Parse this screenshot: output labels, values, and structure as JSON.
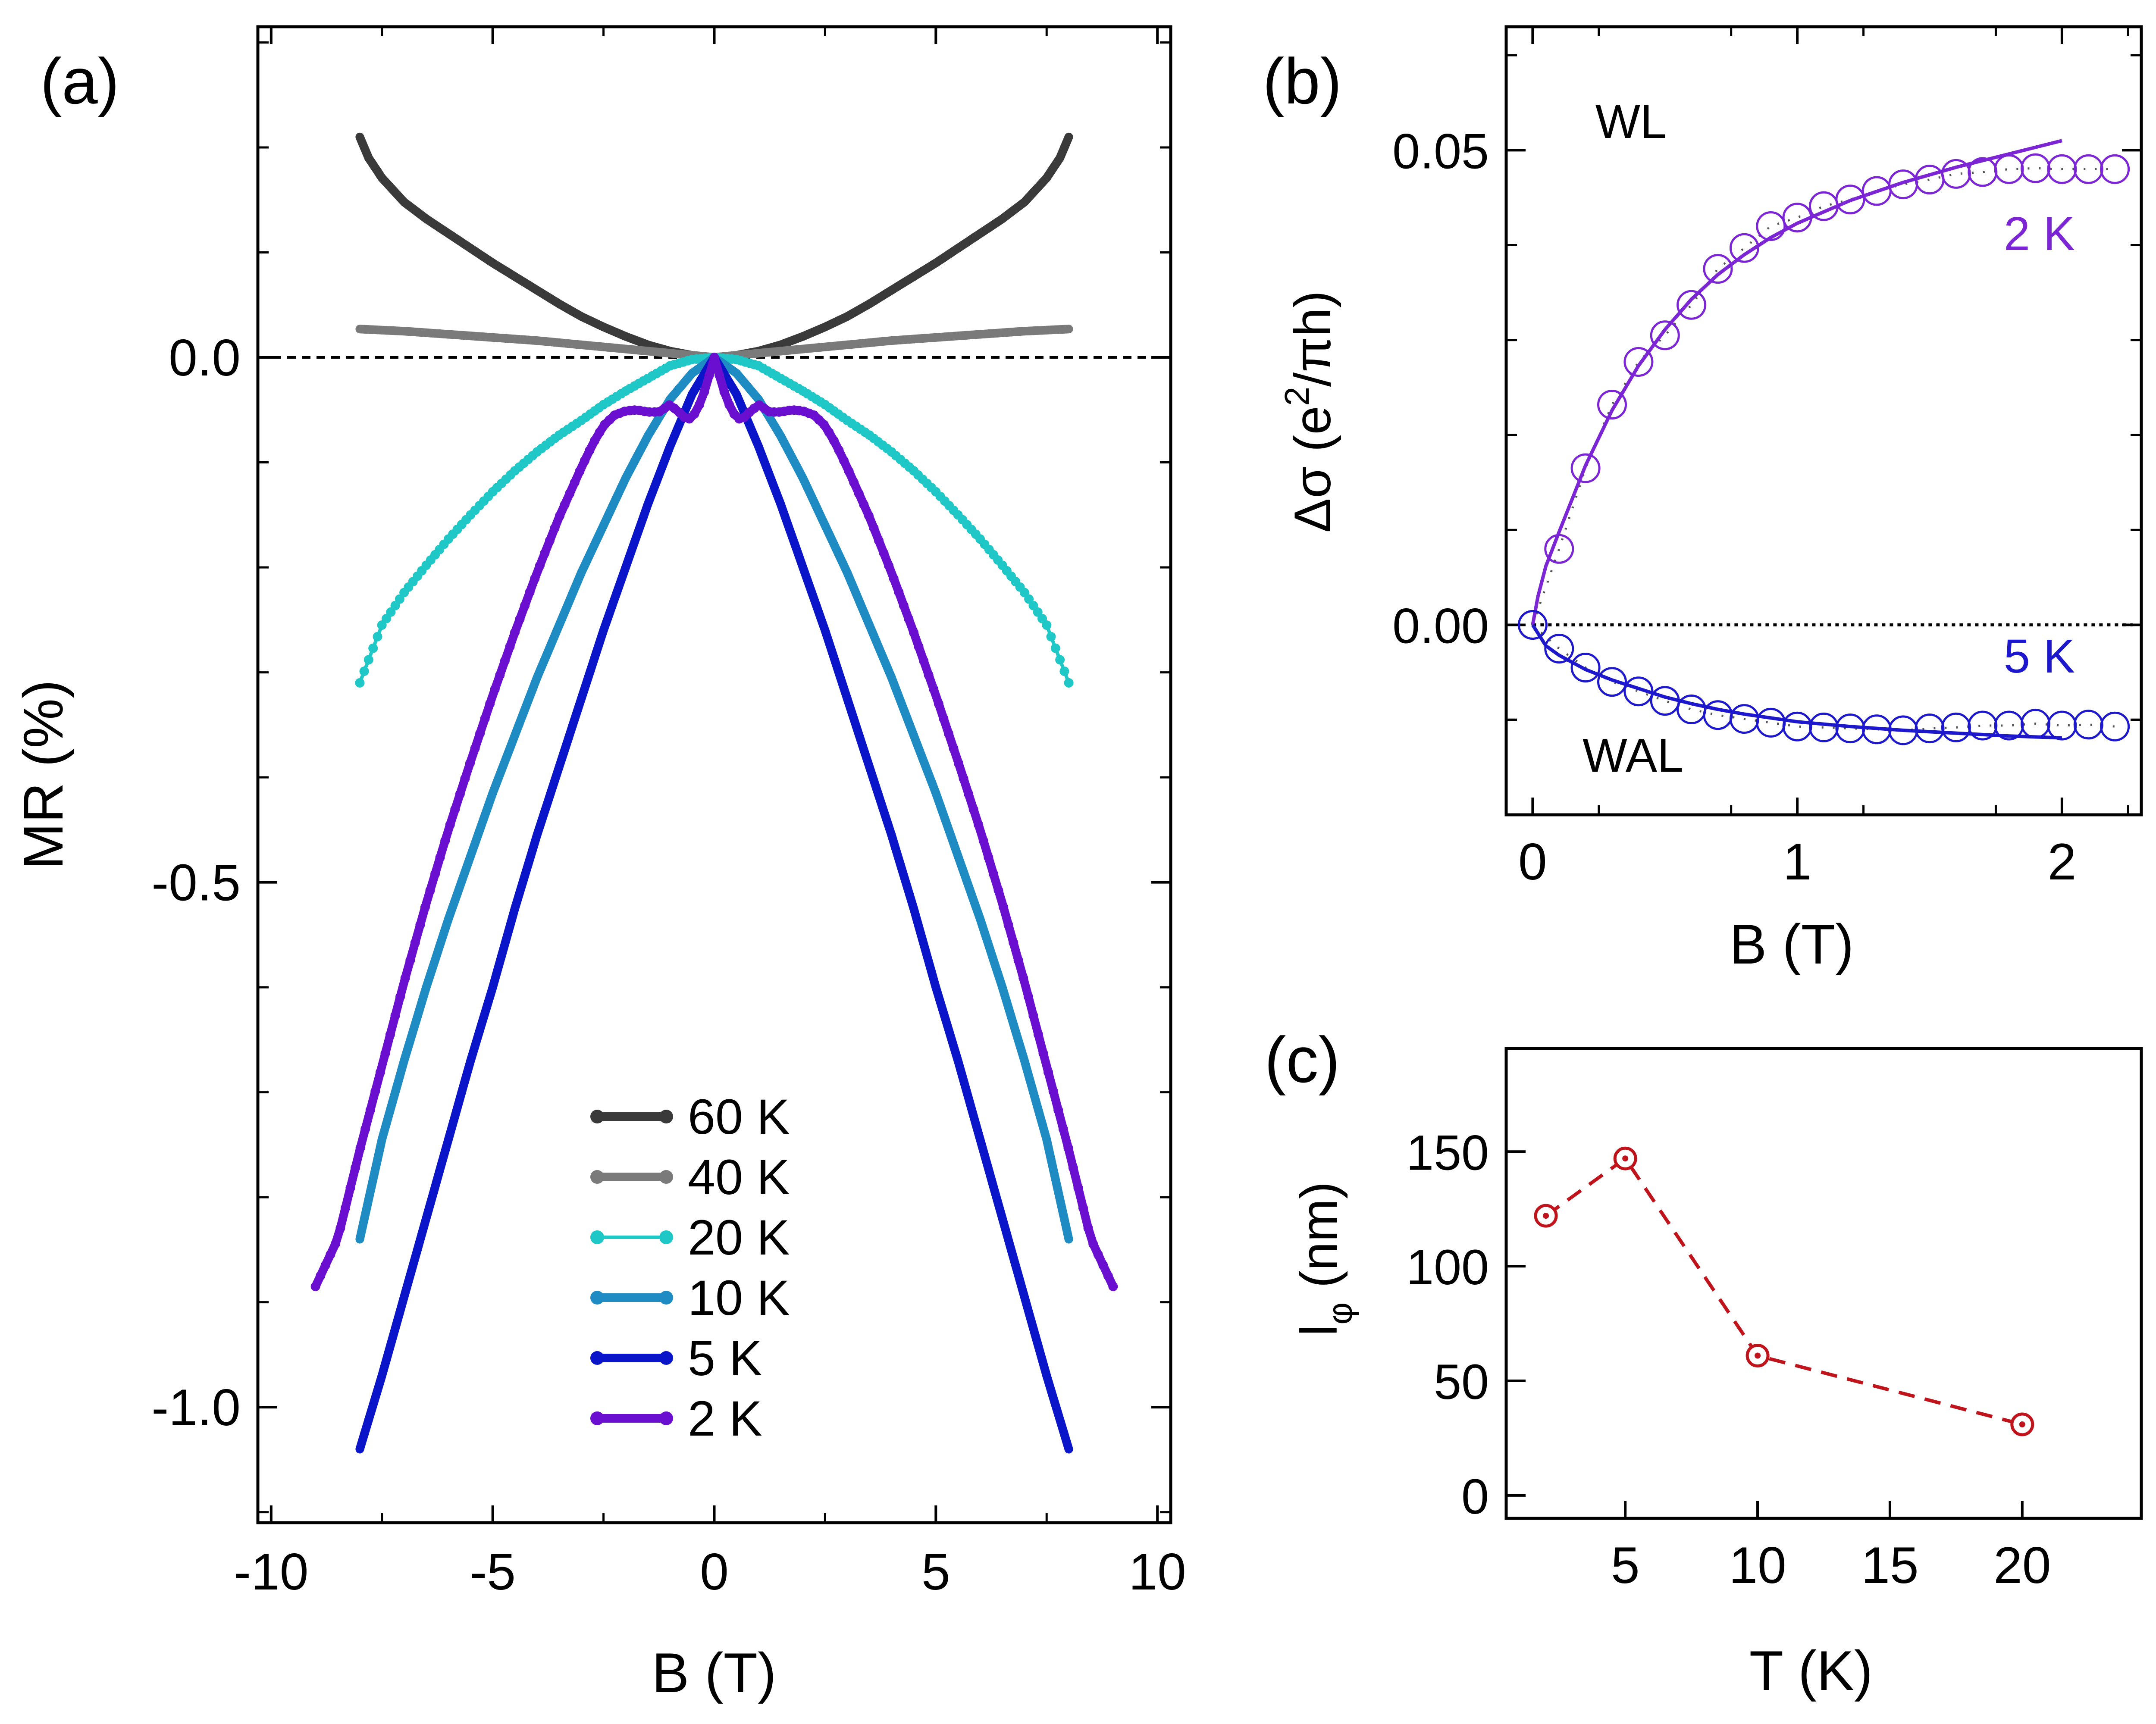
{
  "colors": {
    "k60": "#3a3a3a",
    "k40": "#7a7a7a",
    "k20": "#1fc7c7",
    "k10": "#1e8bc3",
    "k5": "#0a14c8",
    "k2": "#6a0fcf",
    "b2k": "#7b25d4",
    "b5k": "#1d18cc",
    "c": "#c0141c"
  },
  "chart_data": [
    {
      "panel": "(a)",
      "type": "line",
      "xlabel": "B (T)",
      "ylabel": "MR (%)",
      "xlim": [
        -10.3,
        10.3
      ],
      "ylim": [
        -1.11,
        0.315
      ],
      "xticks": [
        -10,
        -5,
        0,
        5,
        10
      ],
      "xtick_labels": [
        "-10",
        "-5",
        "0",
        "5",
        "10"
      ],
      "yticks": [
        0,
        -0.5,
        -1
      ],
      "ytick_labels": [
        "0.0",
        "-0.5",
        "-1.0"
      ],
      "reference_line_y": 0,
      "legend_position": "lower-center",
      "series": [
        {
          "name": "60 K",
          "color_key": "k60",
          "lw": 20,
          "ms": 10,
          "x": [
            0,
            0.5,
            1,
            1.5,
            2,
            2.5,
            3,
            3.5,
            4,
            4.5,
            5,
            5.5,
            6,
            6.5,
            7,
            7.5,
            7.8,
            8
          ],
          "y": [
            0,
            0.002,
            0.006,
            0.012,
            0.02,
            0.029,
            0.039,
            0.051,
            0.064,
            0.077,
            0.09,
            0.104,
            0.118,
            0.132,
            0.148,
            0.171,
            0.19,
            0.21
          ]
        },
        {
          "name": "40 K",
          "color_key": "k40",
          "lw": 20,
          "ms": 10,
          "x": [
            0,
            1,
            2,
            3,
            4,
            5,
            6,
            7,
            8
          ],
          "y": [
            0,
            0.004,
            0.008,
            0.012,
            0.016,
            0.019,
            0.022,
            0.025,
            0.027
          ]
        },
        {
          "name": "20 K",
          "color_key": "k20",
          "lw": 8,
          "ms": 11,
          "x": [
            0,
            0.5,
            1,
            1.5,
            2,
            2.5,
            3,
            3.5,
            4,
            4.5,
            5,
            5.5,
            6,
            6.5,
            7,
            7.5,
            8
          ],
          "y": [
            0,
            -0.002,
            -0.008,
            -0.02,
            -0.032,
            -0.045,
            -0.06,
            -0.074,
            -0.09,
            -0.108,
            -0.128,
            -0.15,
            -0.173,
            -0.198,
            -0.224,
            -0.255,
            -0.31
          ]
        },
        {
          "name": "10 K",
          "color_key": "k10",
          "lw": 20,
          "ms": 10,
          "x": [
            0,
            0.5,
            1,
            1.5,
            2,
            2.5,
            3,
            3.5,
            4,
            4.5,
            5,
            5.5,
            6,
            6.5,
            7,
            7.5,
            8
          ],
          "y": [
            0,
            -0.015,
            -0.04,
            -0.075,
            -0.115,
            -0.16,
            -0.205,
            -0.255,
            -0.305,
            -0.36,
            -0.415,
            -0.475,
            -0.535,
            -0.6,
            -0.67,
            -0.745,
            -0.84
          ]
        },
        {
          "name": " 5 K",
          "color_key": "k5",
          "lw": 20,
          "ms": 10,
          "x": [
            0,
            0.5,
            1,
            1.5,
            2,
            2.5,
            3,
            3.5,
            4,
            4.5,
            5,
            5.5,
            6,
            6.5,
            7,
            7.5,
            8
          ],
          "y": [
            0,
            -0.035,
            -0.085,
            -0.14,
            -0.2,
            -0.26,
            -0.325,
            -0.39,
            -0.455,
            -0.525,
            -0.6,
            -0.67,
            -0.745,
            -0.82,
            -0.895,
            -0.97,
            -1.04
          ]
        },
        {
          "name": " 2 K",
          "color_key": "k2",
          "lw": 20,
          "ms": 11,
          "x": [
            0,
            0.2,
            0.4,
            0.6,
            0.8,
            1.0,
            1.25,
            1.5,
            1.75,
            2.0,
            2.25,
            2.5,
            2.75,
            3.0,
            3.5,
            4.0,
            4.5,
            5.0,
            5.5,
            6.0,
            6.5,
            7.0,
            7.5,
            8.0,
            8.5,
            9.0
          ],
          "y": [
            0,
            -0.03,
            -0.052,
            -0.06,
            -0.052,
            -0.045,
            -0.052,
            -0.052,
            -0.05,
            -0.051,
            -0.055,
            -0.065,
            -0.083,
            -0.105,
            -0.152,
            -0.205,
            -0.262,
            -0.322,
            -0.385,
            -0.45,
            -0.52,
            -0.595,
            -0.675,
            -0.755,
            -0.84,
            -0.885
          ]
        }
      ],
      "legend": [
        "60 K",
        "40 K",
        "20 K",
        "10 K",
        " 5 K",
        " 2 K"
      ]
    },
    {
      "panel": "(b)",
      "type": "scatter",
      "xlabel": "B (T)",
      "ylabel": "Δσ (e",
      "ylabel_sup": "2",
      "ylabel_tail": "/πh)",
      "xlim": [
        -0.1,
        2.3
      ],
      "ylim": [
        -0.02,
        0.063
      ],
      "xticks": [
        0,
        1,
        2
      ],
      "xtick_labels": [
        "0",
        "1",
        "2"
      ],
      "yticks": [
        0.05,
        0,
        -0.01
      ],
      "ytick_labels": [
        "0.05",
        "0.00",
        ""
      ],
      "reference_line_y": 0,
      "annotations": [
        "WL",
        "WAL",
        "2 K",
        "5 K"
      ],
      "series": [
        {
          "name": "2 K",
          "color_key": "b2k",
          "x": [
            0,
            0.1,
            0.2,
            0.3,
            0.4,
            0.5,
            0.6,
            0.7,
            0.8,
            0.9,
            1.0,
            1.1,
            1.2,
            1.3,
            1.4,
            1.5,
            1.6,
            1.7,
            1.8,
            1.9,
            2.0,
            2.1,
            2.2
          ],
          "y": [
            0,
            0.008,
            0.0165,
            0.0232,
            0.0277,
            0.0305,
            0.0337,
            0.0375,
            0.0397,
            0.042,
            0.0429,
            0.0441,
            0.0448,
            0.0457,
            0.0464,
            0.0469,
            0.0475,
            0.0477,
            0.048,
            0.0481,
            0.048,
            0.048,
            0.048
          ],
          "fit_x": [
            0,
            0.02,
            0.05,
            0.1,
            0.2,
            0.3,
            0.4,
            0.5,
            0.6,
            0.7,
            0.8,
            0.9,
            1.0,
            1.2,
            1.4,
            1.6,
            1.8,
            2.0
          ],
          "fit_y": [
            0,
            0.003,
            0.0062,
            0.0098,
            0.0168,
            0.0226,
            0.0273,
            0.0311,
            0.0343,
            0.0369,
            0.039,
            0.0408,
            0.0423,
            0.0447,
            0.0466,
            0.0482,
            0.0496,
            0.051
          ]
        },
        {
          "name": "5 K",
          "color_key": "b5k",
          "x": [
            0,
            0.1,
            0.2,
            0.3,
            0.4,
            0.5,
            0.6,
            0.7,
            0.8,
            0.9,
            1.0,
            1.1,
            1.2,
            1.3,
            1.4,
            1.5,
            1.6,
            1.7,
            1.8,
            1.9,
            2.0,
            2.1,
            2.2
          ],
          "y": [
            0,
            -0.0025,
            -0.0045,
            -0.006,
            -0.007,
            -0.008,
            -0.0089,
            -0.0095,
            -0.0099,
            -0.0103,
            -0.0107,
            -0.0108,
            -0.0109,
            -0.011,
            -0.0111,
            -0.0109,
            -0.0108,
            -0.0106,
            -0.0106,
            -0.0104,
            -0.0106,
            -0.0105,
            -0.0107
          ],
          "fit_x": [
            0,
            0.05,
            0.1,
            0.2,
            0.3,
            0.4,
            0.5,
            0.6,
            0.7,
            0.8,
            1.0,
            1.2,
            1.4,
            1.6,
            1.8,
            2.0
          ],
          "fit_y": [
            0,
            -0.0022,
            -0.0032,
            -0.0047,
            -0.0058,
            -0.0067,
            -0.0076,
            -0.0083,
            -0.0089,
            -0.0094,
            -0.0102,
            -0.0107,
            -0.0111,
            -0.0114,
            -0.0117,
            -0.0119
          ]
        }
      ]
    },
    {
      "panel": "(c)",
      "type": "line",
      "xlabel": "T (K)",
      "ylabel": "l",
      "ylabel_sub": "φ",
      "ylabel_tail": " (nm)",
      "xlim": [
        0.5,
        24.5
      ],
      "ylim": [
        -10,
        195
      ],
      "xticks": [
        5,
        10,
        15,
        20
      ],
      "xtick_labels": [
        "5",
        "10",
        "15",
        "20"
      ],
      "yticks": [
        0,
        50,
        100,
        150
      ],
      "ytick_labels": [
        "0",
        "50",
        "100",
        "150"
      ],
      "series": [
        {
          "name": "l_phi",
          "color_key": "c",
          "x": [
            2,
            5,
            10,
            20
          ],
          "y": [
            122,
            147,
            61,
            31
          ]
        }
      ]
    }
  ]
}
